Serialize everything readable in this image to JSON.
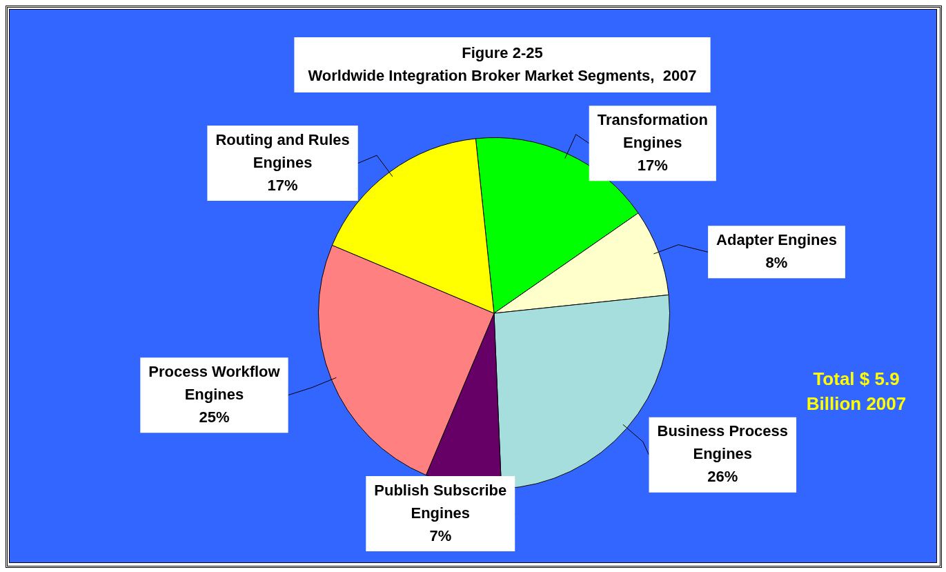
{
  "chart_data": {
    "type": "pie",
    "title": "Figure 2-25",
    "subtitle": "Worldwide Integration Broker Market Segments,  2007",
    "categories": [
      "Transformation Engines",
      "Adapter Engines",
      "Business Process Engines",
      "Publish Subscribe Engines",
      "Process Workflow Engines",
      "Routing and Rules Engines"
    ],
    "values": [
      17,
      8,
      26,
      7,
      25,
      17
    ],
    "value_labels": [
      "17%",
      "8%",
      "26%",
      "7%",
      "25%",
      "17%"
    ],
    "colors": [
      "#00ff00",
      "#ffffcc",
      "#a6dede",
      "#660066",
      "#ff8080",
      "#ffff00"
    ],
    "annotations": [
      "Total $ 5.9 Billion 2007"
    ],
    "legend": false
  }
}
